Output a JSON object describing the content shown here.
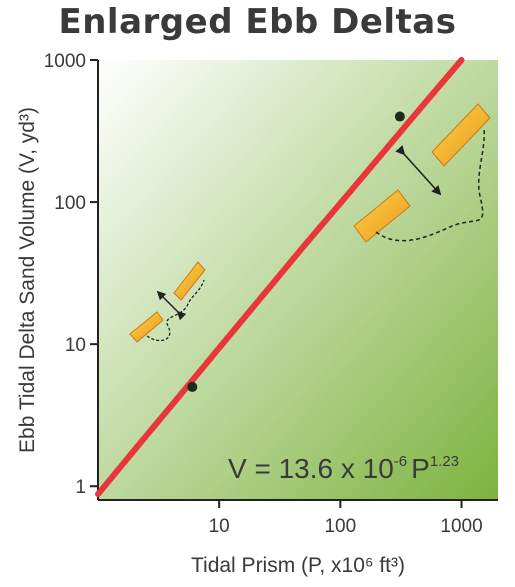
{
  "chart_data": {
    "type": "line",
    "title": "Enlarged Ebb Deltas",
    "xlabel": "Tidal Prism (P, x10⁶ ft³)",
    "ylabel": "Ebb Tidal Delta Sand Volume (V, yd³)",
    "xscale": "log",
    "yscale": "log",
    "xlim": [
      1,
      2000
    ],
    "ylim": [
      0.8,
      1000
    ],
    "x_ticks": [
      {
        "value": 10,
        "label": "10"
      },
      {
        "value": 100,
        "label": "100"
      },
      {
        "value": 1000,
        "label": "1000"
      }
    ],
    "y_ticks": [
      {
        "value": 1,
        "label": "1"
      },
      {
        "value": 10,
        "label": "10"
      },
      {
        "value": 100,
        "label": "100"
      },
      {
        "value": 1000,
        "label": "1000"
      }
    ],
    "series": [
      {
        "color": "#e8363a",
        "x": [
          1,
          2,
          5,
          10,
          50,
          100,
          500,
          1000
        ],
        "y": [
          0.88,
          1.8,
          4.6,
          9.4,
          49,
          98,
          500,
          1000
        ]
      }
    ],
    "highlighted_points": [
      {
        "x": 6,
        "y": 5
      },
      {
        "x": 310,
        "y": 400
      }
    ],
    "equation": {
      "text": "V = 13.6 x 10",
      "exponent": "-6",
      "variable": "P",
      "power": "1.23"
    }
  },
  "colors": {
    "line": "#e8363a",
    "gradient_start": "#ffffff",
    "gradient_end": "#7db33f",
    "delta_fill_light": "#ffd43b",
    "delta_fill_dark": "#e8962a",
    "text": "#3a3a3a"
  }
}
